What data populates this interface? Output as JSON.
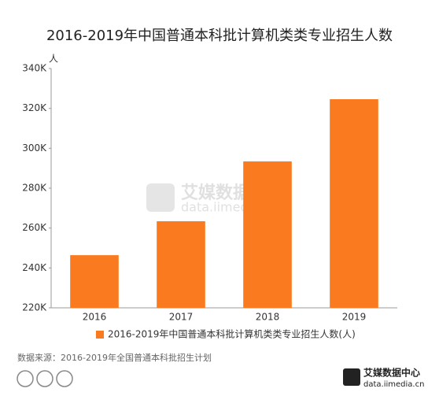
{
  "chart_data": {
    "type": "bar",
    "title": "2016-2019年中国普通本科批计算机类类专业招生人数",
    "y_unit": "人",
    "categories": [
      "2016",
      "2017",
      "2018",
      "2019"
    ],
    "series": [
      {
        "name": "2016-2019年中国普通本科批计算机类类专业招生人数(人)",
        "color": "#f97a1f",
        "values": [
          246400,
          263400,
          293400,
          324600
        ]
      }
    ],
    "ylim": [
      220000,
      340000
    ],
    "yticks": [
      {
        "value": 220000,
        "label": "220K"
      },
      {
        "value": 240000,
        "label": "240K"
      },
      {
        "value": 260000,
        "label": "260K"
      },
      {
        "value": 280000,
        "label": "280K"
      },
      {
        "value": 300000,
        "label": "300K"
      },
      {
        "value": 320000,
        "label": "320K"
      },
      {
        "value": 340000,
        "label": "340K"
      }
    ],
    "grid": false,
    "legend": "bottom",
    "source": "数据来源：2016-2019年全国普通本科批招生计划",
    "watermark": {
      "name": "艾媒数据中心",
      "url": "data.iimedia.cn"
    }
  }
}
